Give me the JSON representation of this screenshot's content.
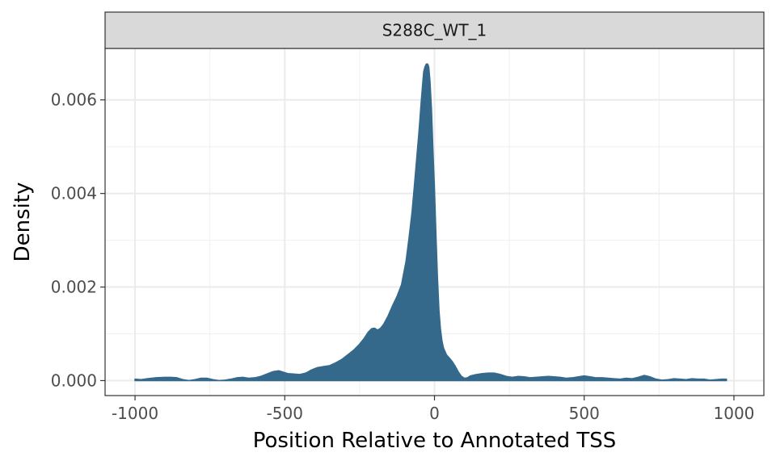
{
  "chart_data": {
    "type": "area",
    "panel_title": "S288C_WT_1",
    "xlabel": "Position Relative to Annotated TSS",
    "ylabel": "Density",
    "xlim": [
      -1100,
      1100
    ],
    "ylim": [
      -0.00032,
      0.0071
    ],
    "x_ticks": [
      -1000,
      -500,
      0,
      500,
      1000
    ],
    "x_tick_labels": [
      "-1000",
      "-500",
      "0",
      "500",
      "1000"
    ],
    "y_ticks": [
      0.0,
      0.002,
      0.004,
      0.006
    ],
    "y_tick_labels": [
      "0.000",
      "0.002",
      "0.004",
      "0.006"
    ],
    "grid": true,
    "fill_color": "#35698c",
    "series": [
      {
        "x": [
          -1000,
          -980,
          -960,
          -930,
          -900,
          -880,
          -860,
          -840,
          -820,
          -800,
          -780,
          -760,
          -740,
          -720,
          -700,
          -680,
          -660,
          -640,
          -620,
          -600,
          -580,
          -560,
          -540,
          -520,
          -505,
          -490,
          -470,
          -450,
          -430,
          -410,
          -390,
          -370,
          -350,
          -330,
          -310,
          -290,
          -270,
          -250,
          -235,
          -222,
          -210,
          -200,
          -190,
          -180,
          -170,
          -155,
          -140,
          -125,
          -110,
          -95,
          -85,
          -75,
          -68,
          -60,
          -52,
          -45,
          -40,
          -36,
          -32,
          -28,
          -25,
          -22,
          -19,
          -15,
          -10,
          -5,
          0,
          5,
          10,
          15,
          20,
          25,
          30,
          40,
          50,
          60,
          70,
          80,
          90,
          100,
          110,
          120,
          140,
          160,
          180,
          200,
          220,
          240,
          260,
          280,
          300,
          320,
          340,
          360,
          380,
          400,
          420,
          440,
          460,
          480,
          500,
          520,
          540,
          560,
          580,
          600,
          620,
          640,
          660,
          680,
          700,
          720,
          740,
          760,
          780,
          800,
          820,
          840,
          860,
          880,
          900,
          920,
          940,
          960,
          975
        ],
        "y": [
          3e-05,
          2e-05,
          4e-05,
          6e-05,
          7e-05,
          7e-05,
          6e-05,
          2e-05,
          0.0,
          2e-05,
          5e-05,
          5e-05,
          2e-05,
          0.0,
          1e-05,
          3e-05,
          6e-05,
          7e-05,
          5e-05,
          6e-05,
          9e-05,
          0.00014,
          0.00019,
          0.00021,
          0.00018,
          0.00015,
          0.00014,
          0.00013,
          0.00016,
          0.00023,
          0.00028,
          0.0003,
          0.00032,
          0.00038,
          0.00045,
          0.00055,
          0.00065,
          0.00078,
          0.0009,
          0.00103,
          0.00111,
          0.00112,
          0.00108,
          0.00112,
          0.0012,
          0.00138,
          0.0016,
          0.0018,
          0.00205,
          0.00255,
          0.00305,
          0.0036,
          0.0041,
          0.0047,
          0.0053,
          0.0059,
          0.0063,
          0.0066,
          0.0067,
          0.00676,
          0.00677,
          0.00676,
          0.0067,
          0.0064,
          0.0058,
          0.0049,
          0.0041,
          0.0031,
          0.0022,
          0.0015,
          0.0011,
          0.00085,
          0.0007,
          0.00055,
          0.00048,
          0.0004,
          0.0003,
          0.00018,
          9e-05,
          5e-05,
          6e-05,
          0.0001,
          0.00013,
          0.00015,
          0.00016,
          0.00016,
          0.00013,
          9e-05,
          7e-05,
          9e-05,
          8e-05,
          6e-05,
          7e-05,
          8e-05,
          9e-05,
          8e-05,
          7e-05,
          5e-05,
          6e-05,
          8e-05,
          0.0001,
          8e-05,
          6e-05,
          6e-05,
          5e-05,
          4e-05,
          3e-05,
          5e-05,
          4e-05,
          7e-05,
          0.00011,
          8e-05,
          3e-05,
          1e-05,
          2e-05,
          4e-05,
          3e-05,
          2e-05,
          4e-05,
          3e-05,
          3e-05,
          1e-05,
          2e-05,
          3e-05,
          3e-05
        ]
      }
    ]
  }
}
